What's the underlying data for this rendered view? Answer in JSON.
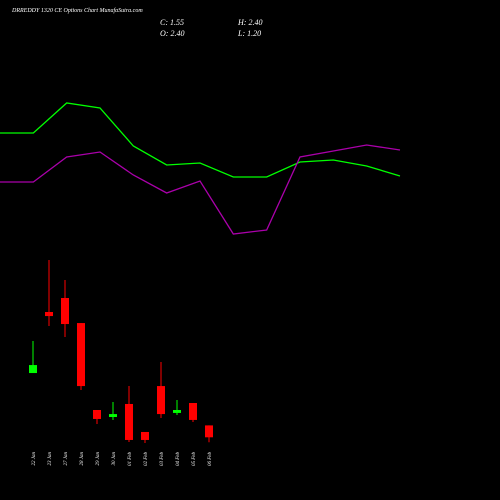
{
  "header": {
    "title": "DRREDDY 1320 CE Options Chart MunafaSutra.com",
    "close": "C: 1.55",
    "high": "H: 2.40",
    "open": "O: 2.40",
    "low": "L: 1.20"
  },
  "chart_data": [
    {
      "type": "line",
      "ylim": [
        0,
        250
      ],
      "series": [
        {
          "color": "#00ff00",
          "values": [
            117,
            117,
            147,
            142,
            104,
            85,
            87,
            73,
            73,
            88,
            90,
            84,
            74
          ]
        },
        {
          "color": "#aa00aa",
          "values": [
            68,
            68,
            93,
            98,
            75,
            57,
            69,
            16,
            20,
            93,
            99,
            105,
            100
          ]
        }
      ]
    },
    {
      "type": "candlestick",
      "ylim": [
        0,
        18
      ],
      "up_color": "#00ff00",
      "down_color": "#ff0000",
      "categories": [
        "22 Jan",
        "23 Jan",
        "27 Jan",
        "28 Jan",
        "29 Jan",
        "30 Jan",
        "01 Feb",
        "02 Feb",
        "03 Feb",
        "04 Feb",
        "05 Feb",
        "06 Feb"
      ],
      "open": [
        6.14,
        10.5,
        11.5,
        9.71,
        3.5,
        3.0,
        3.93,
        1.93,
        5.21,
        3.29,
        4.0,
        2.4
      ],
      "high": [
        8.43,
        14.21,
        12.79,
        9.71,
        3.5,
        4.07,
        5.21,
        1.93,
        6.93,
        4.21,
        4.0,
        2.4
      ],
      "low": [
        6.14,
        9.5,
        8.71,
        4.93,
        2.5,
        2.79,
        1.21,
        1.14,
        2.93,
        3.14,
        2.64,
        1.2
      ],
      "close": [
        6.71,
        10.21,
        9.64,
        5.21,
        2.86,
        3.21,
        1.36,
        1.36,
        3.21,
        3.5,
        2.79,
        1.55
      ]
    }
  ]
}
